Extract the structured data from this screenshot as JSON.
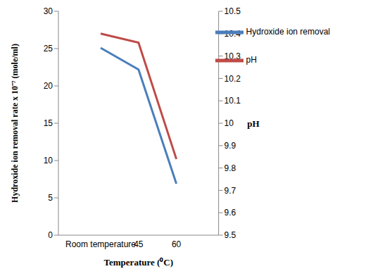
{
  "chart_data": {
    "type": "line",
    "categories": [
      "Room temperature",
      "45",
      "60"
    ],
    "series": [
      {
        "name": "Hydroxide ion removal",
        "color": "#4a7ebb",
        "values": [
          25.1,
          22.2,
          6.9
        ]
      },
      {
        "name": "pH",
        "color": "#be4b48",
        "values": [
          10.4,
          10.36,
          9.84
        ],
        "axis": "y2"
      }
    ],
    "x_label": "Temperature (⁰C)",
    "y_label": "Hydroxide ion removal rate x 10⁻⁷ (mole/ml)",
    "y2_label": "pH",
    "ylim": [
      0,
      30
    ],
    "yticks": [
      0,
      5,
      10,
      15,
      20,
      25,
      30
    ],
    "y2lim": [
      9.5,
      10.5
    ],
    "y2ticks": [
      9.5,
      9.6,
      9.7,
      9.8,
      9.9,
      10,
      10.1,
      10.2,
      10.3,
      10.4,
      10.5
    ],
    "legend": "upper right",
    "grid": false
  }
}
